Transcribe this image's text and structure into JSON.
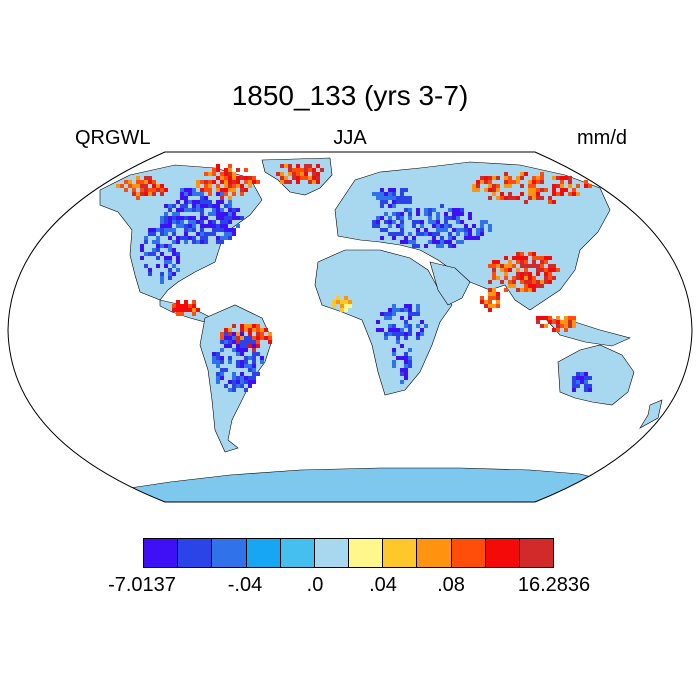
{
  "title": "1850_133 (yrs 3-7)",
  "left_label": "QRGWL",
  "center_label": "JJA",
  "right_label": "mm/d",
  "colorbar": {
    "colors": [
      "#3f10f5",
      "#2a44e8",
      "#2f72ea",
      "#16a6f4",
      "#44bff0",
      "#a8d8f0",
      "#fff68c",
      "#ffc82a",
      "#ff9410",
      "#ff4d0a",
      "#f50a0a",
      "#d22a2a"
    ],
    "labels": [
      "-7.0137",
      "-.04",
      ".0",
      ".04",
      ".08",
      "16.2836"
    ]
  }
}
